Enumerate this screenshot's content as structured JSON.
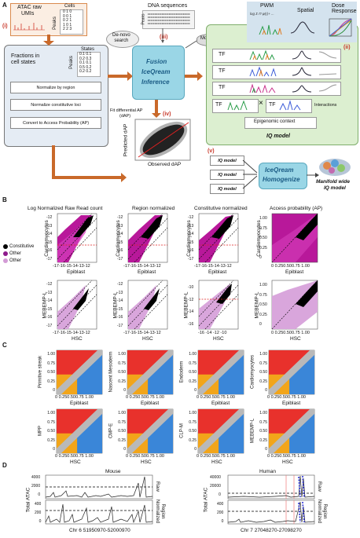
{
  "panelA": {
    "label": "A",
    "atac": {
      "title1": "ATAC raw",
      "title2": "UMIs",
      "cells": "Cells",
      "peaks": "Peaks",
      "matrix": [
        "0 1 0",
        "0 0 1",
        "0 2 1",
        "1 0 1",
        "2 2 3"
      ]
    },
    "dna": {
      "title": "DNA sequences",
      "peaks": "Peaks"
    },
    "steps": {
      "s1": "(i)",
      "s2": "(ii)",
      "s3": "(iii)",
      "s4": "(iv)",
      "s5": "(v)"
    },
    "pipeline": {
      "fractions": "Fractions in\ncell states",
      "states": "States",
      "peaks": "Peaks",
      "matrix": [
        "0.1 0.1",
        "0.2 0.3",
        "0.1 0.1",
        "0.5 0.2",
        "0.2 0.2"
      ],
      "normalize_region": "Normalize by region",
      "normalize_constitutive": "Normalize constitutive loci",
      "convert_ap": "Convert to Access Probability (AP)"
    },
    "denovo": "De-novo\nsearch",
    "motifdb": "Motif DB",
    "fusion": {
      "l1": "Fusion",
      "l2": "IceQream",
      "l3": "Inference"
    },
    "iq": {
      "pwm": "PWM",
      "spatial": "Spatial",
      "dose": "Dose\nResponse",
      "tf": "TF",
      "interactions": "Interactions",
      "epigenomic": "Epigenomic context",
      "model": "IQ model"
    },
    "fit": {
      "l1": "Fit differential AP",
      "l2": "(dAP)"
    },
    "scatter": {
      "xlabel": "Observed dAP",
      "ylabel": "Predicted dAP"
    },
    "homog": {
      "model": "IQ model",
      "l1": "IceQream",
      "l2": "Homogenize",
      "out1": "Manifold wide",
      "out2": "IQ model"
    }
  },
  "panelB": {
    "label": "B",
    "titles": [
      "Log Normalized Raw Read count",
      "Region normalized",
      "Constitutive normalized",
      "Access probability (AP)"
    ],
    "legend": [
      {
        "name": "Constitutive",
        "color": "#000000"
      },
      {
        "name": "Other",
        "color": "#8e1a8c"
      },
      {
        "name": "Other",
        "color": "#d39bd6"
      }
    ],
    "row1": {
      "ylabel": "Cardiomyocytes",
      "xlabel": "Epiblast",
      "yticks_a": [
        "-12",
        "-13",
        "-14",
        "-15",
        "-16",
        "-17"
      ],
      "xticks_a": "-17-16-15-14-13-12",
      "yticks_ap": [
        "1.00",
        "0.75",
        "0.50",
        "0.25",
        "0"
      ],
      "xticks_ap": "0 0.250.500.75 1.00"
    },
    "row2": {
      "ylabel": "MEBEMP-L",
      "xlabel": "HSC",
      "yticks_a": [
        "-12",
        "-13",
        "-14",
        "-15",
        "-16",
        "-17"
      ],
      "xticks_a": "-17-16-15-14-13-12",
      "yticks_c": [
        "-10",
        "-12",
        "-14",
        "-16"
      ],
      "xticks_c": "-16  -14  -12  -10",
      "yticks_ap": [
        "1.00",
        "0.75",
        "0.50",
        "0.25",
        "0"
      ],
      "xticks_ap": "0 0.250.500.75 1.00"
    }
  },
  "panelC": {
    "label": "C",
    "row1": {
      "xlabel": "Epiblast",
      "ylabels": [
        "Primitive streak",
        "Nascent Mesoderm",
        "Endoderm",
        "Cardiomyocytes"
      ]
    },
    "row2": {
      "xlabel": "HSC",
      "ylabels": [
        "MPP",
        "CMP-E",
        "CLP-M",
        "MEBEMP-L"
      ]
    },
    "yticks": [
      "1.00",
      "0.75",
      "0.50",
      "0.25",
      "0"
    ],
    "xticks": "0 0.250.500.75 1.00",
    "colors": {
      "red": "#e8312c",
      "blue": "#3a86d8",
      "orange": "#f2a51a",
      "grey": "#b9b9b9"
    }
  },
  "panelD": {
    "label": "D",
    "mouse": {
      "title": "Mouse",
      "ylabel": "Total ATAC",
      "raw": "Raw",
      "region": "Region\nNormalized",
      "xlabel": "Chr 6 51950970-52000970",
      "yticks_top": [
        "4000",
        "2000",
        "0"
      ],
      "yticks_bot": [
        "400",
        "200",
        "0"
      ]
    },
    "human": {
      "title": "Human",
      "ylabel": "Total ATAC",
      "raw": "Raw",
      "region": "Region\nNormalized",
      "xlabel": "Chr 7 27048270-27098270",
      "yticks_top": [
        "40000",
        "20000",
        "0"
      ],
      "yticks_bot": [
        "400",
        "200",
        "0"
      ]
    }
  }
}
